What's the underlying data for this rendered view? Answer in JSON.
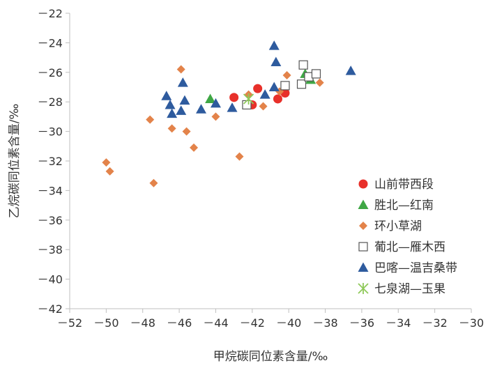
{
  "chart_data": {
    "type": "scatter",
    "title": "",
    "xlabel": "甲烷碳同位素含量/‰",
    "ylabel": "乙烷碳同位素含量/‰",
    "xlim": [
      -52,
      -30
    ],
    "ylim": [
      -42,
      -22
    ],
    "xticks": [
      -52,
      -50,
      -48,
      -46,
      -44,
      -42,
      -40,
      -38,
      -36,
      -34,
      -32,
      -30
    ],
    "yticks": [
      -42,
      -40,
      -38,
      -36,
      -34,
      -32,
      -30,
      -28,
      -26,
      -24,
      -22
    ],
    "xtick_labels": [
      "－52",
      "－50",
      "－48",
      "－46",
      "－44",
      "－42",
      "－40",
      "－38",
      "－36",
      "－34",
      "－32",
      "－30"
    ],
    "ytick_labels": [
      "－42",
      "－40",
      "－38",
      "－36",
      "－34",
      "－32",
      "－30",
      "－28",
      "－26",
      "－24",
      "－22"
    ],
    "grid": false,
    "legend_position": "bottom-right",
    "series": [
      {
        "name": "山前带西段",
        "marker": "circle",
        "color": "#e8302a",
        "points": [
          [
            -43.0,
            -27.7
          ],
          [
            -42.0,
            -28.2
          ],
          [
            -41.7,
            -27.1
          ],
          [
            -40.6,
            -27.8
          ],
          [
            -40.2,
            -27.4
          ]
        ]
      },
      {
        "name": "胜北—红南",
        "marker": "triangle",
        "color": "#3fa745",
        "points": [
          [
            -44.3,
            -27.8
          ],
          [
            -39.1,
            -26.1
          ],
          [
            -38.8,
            -26.5
          ]
        ]
      },
      {
        "name": "环小草湖",
        "marker": "diamond",
        "color": "#e3834a",
        "points": [
          [
            -50.0,
            -32.1
          ],
          [
            -49.8,
            -32.7
          ],
          [
            -47.6,
            -29.2
          ],
          [
            -47.4,
            -33.5
          ],
          [
            -46.4,
            -29.8
          ],
          [
            -45.9,
            -25.8
          ],
          [
            -45.6,
            -30.0
          ],
          [
            -45.2,
            -31.1
          ],
          [
            -44.0,
            -29.0
          ],
          [
            -42.7,
            -31.7
          ],
          [
            -42.2,
            -27.5
          ],
          [
            -41.4,
            -28.3
          ],
          [
            -40.5,
            -27.3
          ],
          [
            -40.1,
            -26.2
          ],
          [
            -38.3,
            -26.7
          ]
        ]
      },
      {
        "name": "葡北—雁木西",
        "marker": "square-open",
        "color": "#555555",
        "points": [
          [
            -42.3,
            -28.2
          ],
          [
            -40.2,
            -26.9
          ],
          [
            -39.3,
            -26.8
          ],
          [
            -39.2,
            -25.5
          ],
          [
            -38.9,
            -26.3
          ],
          [
            -38.5,
            -26.1
          ]
        ]
      },
      {
        "name": "巴喀—温吉桑带",
        "marker": "triangle",
        "color": "#2e5b9e",
        "points": [
          [
            -46.7,
            -27.6
          ],
          [
            -46.5,
            -28.2
          ],
          [
            -46.4,
            -28.8
          ],
          [
            -45.9,
            -28.6
          ],
          [
            -45.8,
            -26.7
          ],
          [
            -45.7,
            -27.9
          ],
          [
            -44.8,
            -28.5
          ],
          [
            -44.0,
            -28.1
          ],
          [
            -43.1,
            -28.4
          ],
          [
            -41.3,
            -27.5
          ],
          [
            -40.8,
            -27.0
          ],
          [
            -40.8,
            -24.2
          ],
          [
            -40.7,
            -25.3
          ],
          [
            -36.6,
            -25.9
          ]
        ]
      },
      {
        "name": "七泉湖—玉果",
        "marker": "asterisk",
        "color": "#8fc95a",
        "points": [
          [
            -42.2,
            -27.8
          ]
        ]
      }
    ]
  }
}
